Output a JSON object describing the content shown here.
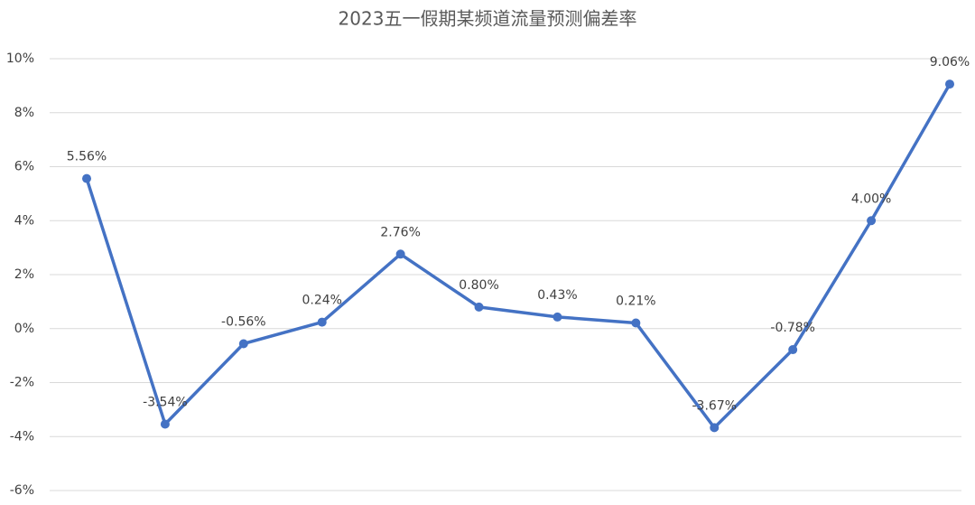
{
  "chart_data": {
    "type": "line",
    "title": "2023五一假期某频道流量预测偏差率",
    "values": [
      5.56,
      -3.54,
      -0.56,
      0.24,
      2.76,
      0.8,
      0.43,
      0.21,
      -3.67,
      -0.78,
      4.0,
      9.06
    ],
    "value_labels": [
      "5.56%",
      "-3.54%",
      "-0.56%",
      "0.24%",
      "2.76%",
      "0.80%",
      "0.43%",
      "0.21%",
      "-3.67%",
      "-0.78%",
      "4.00%",
      "9.06%"
    ],
    "color": "#4472c4",
    "ylim": [
      -6,
      10
    ],
    "yticks": [
      {
        "value": -6,
        "label": "-6%"
      },
      {
        "value": -4,
        "label": "-4%"
      },
      {
        "value": -2,
        "label": "-2%"
      },
      {
        "value": 0,
        "label": "0%"
      },
      {
        "value": 2,
        "label": "2%"
      },
      {
        "value": 4,
        "label": "4%"
      },
      {
        "value": 6,
        "label": "6%"
      },
      {
        "value": 8,
        "label": "8%"
      },
      {
        "value": 10,
        "label": "10%"
      }
    ],
    "grid": true
  }
}
